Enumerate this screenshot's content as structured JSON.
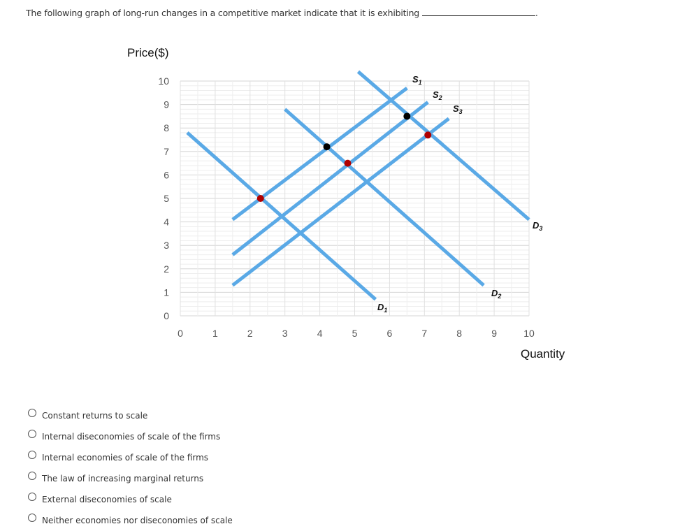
{
  "question": {
    "text": "The following graph of long-run changes in a competitive market indicate that it is exhibiting",
    "blank_end": "."
  },
  "chart_data": {
    "type": "line",
    "title": "",
    "xlabel": "Quantity",
    "ylabel": "Price($)",
    "xlim": [
      0,
      10
    ],
    "ylim": [
      0,
      10
    ],
    "x_ticks": [
      "0",
      "1",
      "2",
      "3",
      "4",
      "5",
      "6",
      "7",
      "8",
      "9",
      "10"
    ],
    "y_ticks": [
      "0",
      "1",
      "2",
      "3",
      "4",
      "5",
      "6",
      "7",
      "8",
      "9",
      "10"
    ],
    "grid": true,
    "legend": "inline labels",
    "series": [
      {
        "name": "D1",
        "kind": "demand",
        "points": [
          [
            0.2,
            7.8
          ],
          [
            5.6,
            0.7
          ]
        ]
      },
      {
        "name": "D2",
        "kind": "demand",
        "points": [
          [
            3.0,
            8.8
          ],
          [
            8.7,
            1.3
          ]
        ]
      },
      {
        "name": "D3",
        "kind": "demand",
        "points": [
          [
            5.1,
            10.4
          ],
          [
            10.0,
            4.1
          ]
        ]
      },
      {
        "name": "S1",
        "kind": "supply",
        "points": [
          [
            1.5,
            4.1
          ],
          [
            6.5,
            9.7
          ]
        ]
      },
      {
        "name": "S2",
        "kind": "supply",
        "points": [
          [
            1.5,
            2.6
          ],
          [
            7.1,
            9.1
          ]
        ]
      },
      {
        "name": "S3",
        "kind": "supply",
        "points": [
          [
            1.5,
            1.3
          ],
          [
            7.7,
            8.4
          ]
        ]
      }
    ],
    "equilibrium_points": [
      {
        "x": 2.3,
        "y": 5.0,
        "color": "#b00000"
      },
      {
        "x": 4.2,
        "y": 7.2,
        "color": "#000000"
      },
      {
        "x": 4.8,
        "y": 6.5,
        "color": "#b00000"
      },
      {
        "x": 6.5,
        "y": 8.5,
        "color": "#000000"
      },
      {
        "x": 7.1,
        "y": 7.7,
        "color": "#b00000"
      }
    ],
    "labels": {
      "S1": "S1",
      "S2": "S2",
      "S3": "S3",
      "D1": "D1",
      "D2": "D2",
      "D3": "D3"
    },
    "colors": {
      "line": "#5aa9e6",
      "grid": "#e3e3e3",
      "grid_major": "#d9d9d9"
    }
  },
  "options": [
    {
      "label": "Constant returns to scale"
    },
    {
      "label": "Internal diseconomies of scale of the firms"
    },
    {
      "label": "Internal economies of scale of the firms"
    },
    {
      "label": "The law of increasing marginal returns"
    },
    {
      "label": "External diseconomies of scale"
    },
    {
      "label": "Neither economies nor diseconomies of scale"
    }
  ]
}
